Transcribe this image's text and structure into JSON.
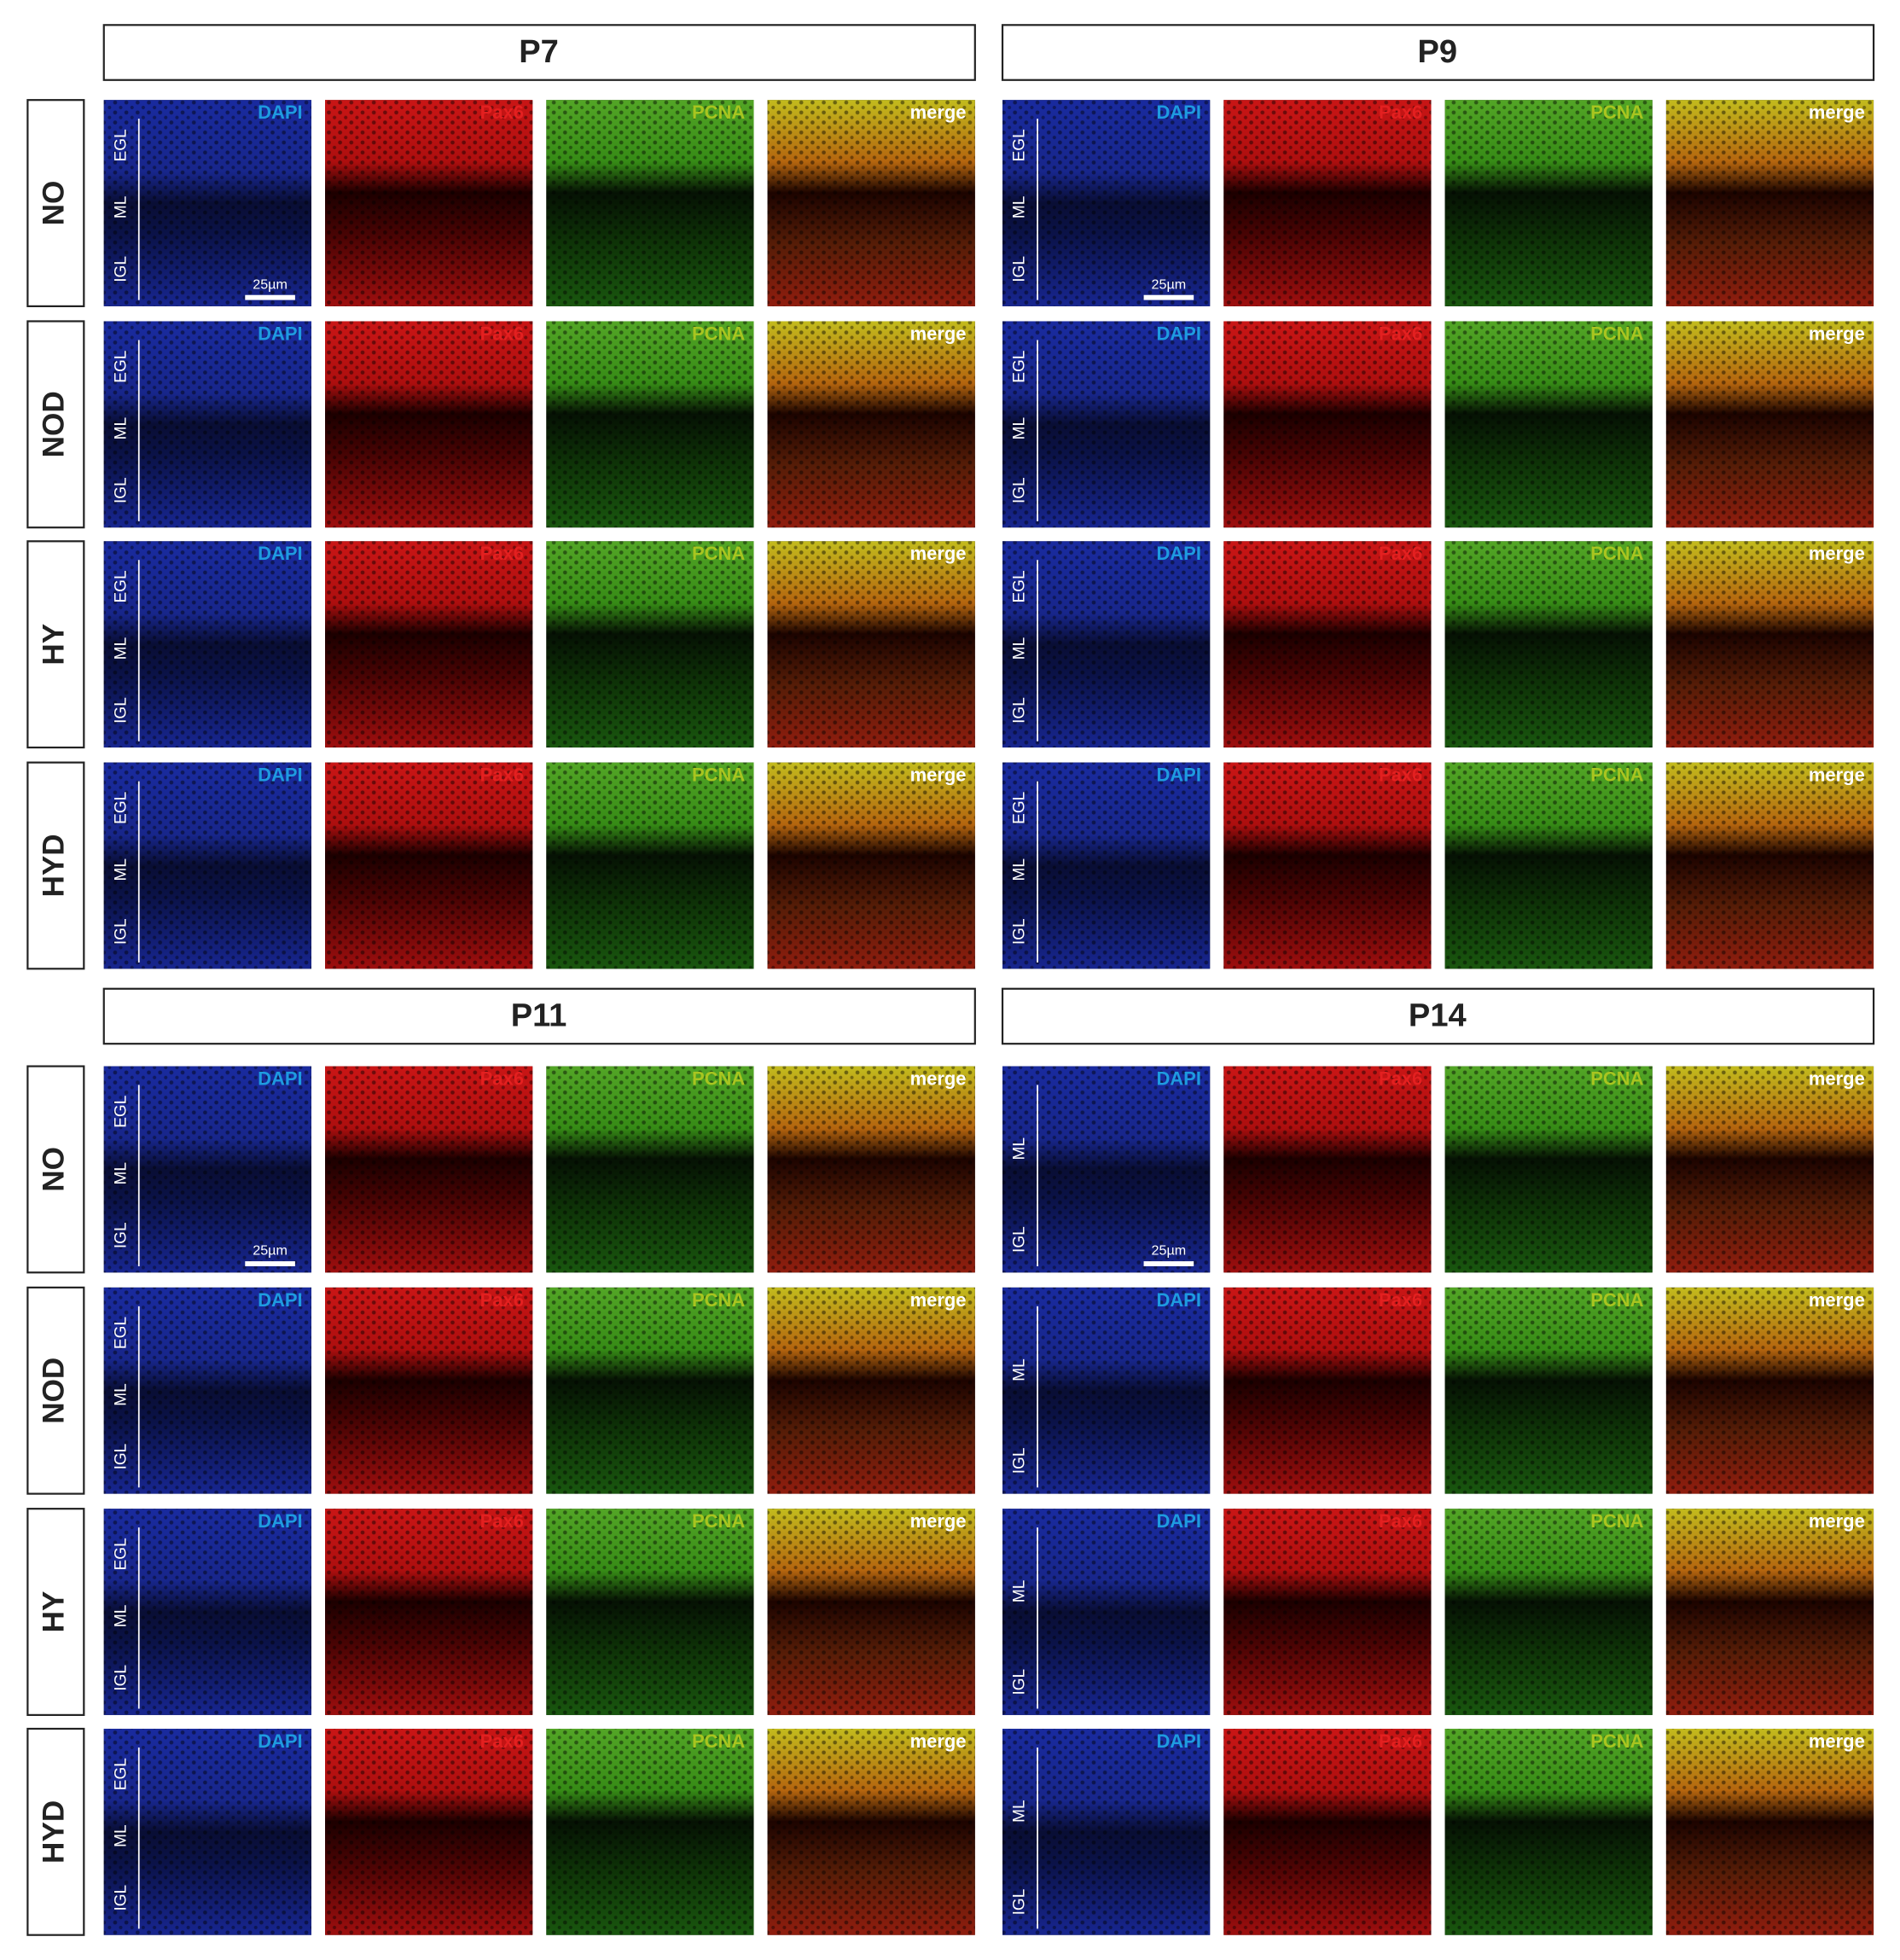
{
  "figure": {
    "channels": [
      "DAPI",
      "Pax6",
      "PCNA",
      "merge"
    ],
    "row_labels": [
      "NO",
      "NOD",
      "HY",
      "HYD"
    ],
    "blocks": [
      {
        "title": "P7",
        "scale_bar": "25µm",
        "rows": [
          {
            "layers": [
              "EGL",
              "ML",
              "IGL"
            ]
          },
          {
            "layers": [
              "EGL",
              "ML",
              "IGL"
            ]
          },
          {
            "layers": [
              "EGL",
              "ML",
              "IGL"
            ]
          },
          {
            "layers": [
              "EGL",
              "ML",
              "IGL"
            ]
          }
        ]
      },
      {
        "title": "P9",
        "scale_bar": "25µm",
        "rows": [
          {
            "layers": [
              "EGL",
              "ML",
              "IGL"
            ]
          },
          {
            "layers": [
              "EGL",
              "ML",
              "IGL"
            ]
          },
          {
            "layers": [
              "EGL",
              "ML",
              "IGL"
            ]
          },
          {
            "layers": [
              "EGL",
              "ML",
              "IGL"
            ]
          }
        ]
      },
      {
        "title": "P11",
        "scale_bar": "25µm",
        "rows": [
          {
            "layers": [
              "EGL",
              "ML",
              "IGL"
            ]
          },
          {
            "layers": [
              "EGL",
              "ML",
              "IGL"
            ]
          },
          {
            "layers": [
              "EGL",
              "ML",
              "IGL"
            ]
          },
          {
            "layers": [
              "EGL",
              "ML",
              "IGL"
            ]
          }
        ]
      },
      {
        "title": "P14",
        "scale_bar": "25µm",
        "rows": [
          {
            "layers": [
              "ML",
              "IGL"
            ]
          },
          {
            "layers": [
              "ML",
              "IGL"
            ]
          },
          {
            "layers": [
              "ML",
              "IGL"
            ]
          },
          {
            "layers": [
              "ML",
              "IGL"
            ]
          }
        ]
      }
    ]
  }
}
